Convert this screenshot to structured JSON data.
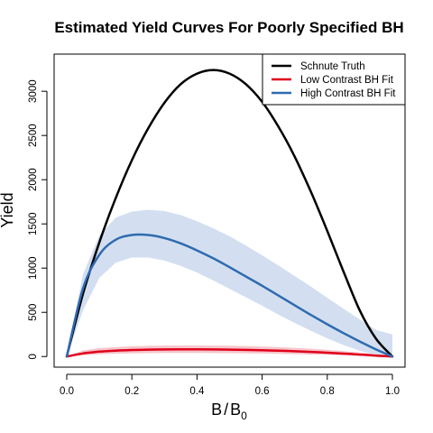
{
  "chart_data": {
    "type": "line",
    "title": "Estimated Yield Curves For Poorly Specified BH",
    "xlabel_base": "B",
    "xlabel_sep": "/",
    "xlabel_denom": "B",
    "xlabel_sub": "0",
    "ylabel": "Yield",
    "xlim": [
      0,
      1
    ],
    "ylim": [
      -120,
      3420
    ],
    "x_ticks": [
      0.0,
      0.2,
      0.4,
      0.6,
      0.8,
      1.0
    ],
    "x_tick_labels": [
      "0.0",
      "0.2",
      "0.4",
      "0.6",
      "0.8",
      "1.0"
    ],
    "y_ticks": [
      0,
      500,
      1000,
      1500,
      2000,
      2500,
      3000
    ],
    "y_tick_labels": [
      "0",
      "500",
      "1000",
      "1500",
      "2000",
      "2500",
      "3000"
    ],
    "grid": false,
    "legend_position": "top-right",
    "x": [
      0,
      0.05,
      0.1,
      0.15,
      0.2,
      0.25,
      0.3,
      0.35,
      0.4,
      0.45,
      0.5,
      0.55,
      0.6,
      0.65,
      0.7,
      0.75,
      0.8,
      0.85,
      0.9,
      0.95,
      1.0
    ],
    "series": [
      {
        "name": "Schnute Truth",
        "color": "#000000",
        "values": [
          0,
          710,
          1290,
          1790,
          2220,
          2580,
          2870,
          3080,
          3200,
          3240,
          3200,
          3080,
          2880,
          2600,
          2260,
          1860,
          1420,
          960,
          520,
          200,
          0
        ]
      },
      {
        "name": "Low Contrast BH Fit",
        "color": "#e0001b",
        "values": [
          0,
          35,
          55,
          67,
          74,
          78,
          80,
          81,
          81,
          80,
          78,
          75,
          71,
          66,
          60,
          52,
          43,
          33,
          22,
          11,
          0
        ],
        "band_lower": [
          0,
          15,
          25,
          32,
          36,
          38,
          40,
          40,
          40,
          39,
          38,
          36,
          34,
          31,
          27,
          23,
          19,
          14,
          9,
          4,
          0
        ],
        "band_upper": [
          0,
          70,
          95,
          108,
          116,
          121,
          124,
          125,
          125,
          124,
          122,
          119,
          114,
          107,
          98,
          88,
          76,
          62,
          46,
          27,
          15
        ],
        "band_color": "#f5c6cc"
      },
      {
        "name": "High Contrast BH Fit",
        "color": "#2f6bb0",
        "values": [
          0,
          770,
          1150,
          1320,
          1375,
          1375,
          1340,
          1280,
          1200,
          1110,
          1010,
          905,
          800,
          690,
          580,
          470,
          365,
          265,
          170,
          80,
          0
        ],
        "band_lower": [
          0,
          520,
          890,
          1060,
          1120,
          1120,
          1085,
          1025,
          950,
          860,
          765,
          670,
          575,
          475,
          380,
          290,
          205,
          130,
          65,
          20,
          0
        ],
        "band_upper": [
          0,
          930,
          1370,
          1570,
          1640,
          1660,
          1645,
          1600,
          1530,
          1450,
          1360,
          1255,
          1145,
          1030,
          910,
          790,
          665,
          540,
          420,
          300,
          250
        ],
        "band_color": "#d3dff0"
      }
    ]
  }
}
